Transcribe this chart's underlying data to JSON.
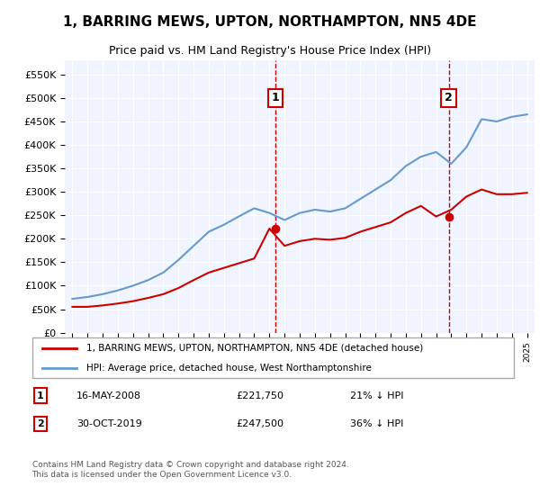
{
  "title": "1, BARRING MEWS, UPTON, NORTHAMPTON, NN5 4DE",
  "subtitle": "Price paid vs. HM Land Registry's House Price Index (HPI)",
  "legend_label_red": "1, BARRING MEWS, UPTON, NORTHAMPTON, NN5 4DE (detached house)",
  "legend_label_blue": "HPI: Average price, detached house, West Northamptonshire",
  "transaction1_label": "1",
  "transaction1_date": "16-MAY-2008",
  "transaction1_price": "£221,750",
  "transaction1_hpi": "21% ↓ HPI",
  "transaction2_label": "2",
  "transaction2_date": "30-OCT-2019",
  "transaction2_price": "£247,500",
  "transaction2_hpi": "36% ↓ HPI",
  "footer": "Contains HM Land Registry data © Crown copyright and database right 2024.\nThis data is licensed under the Open Government Licence v3.0.",
  "ylim": [
    0,
    580000
  ],
  "yticks": [
    0,
    50000,
    100000,
    150000,
    200000,
    250000,
    300000,
    350000,
    400000,
    450000,
    500000,
    550000
  ],
  "background_color": "#f0f4ff",
  "plot_bg": "#f0f4ff",
  "red_color": "#cc0000",
  "blue_color": "#6699cc",
  "vline_color": "#cc0000",
  "transaction1_x": 2008.38,
  "transaction2_x": 2019.83,
  "hpi_years": [
    1995,
    1996,
    1997,
    1998,
    1999,
    2000,
    2001,
    2002,
    2003,
    2004,
    2005,
    2006,
    2007,
    2008,
    2009,
    2010,
    2011,
    2012,
    2013,
    2014,
    2015,
    2016,
    2017,
    2018,
    2019,
    2020,
    2021,
    2022,
    2023,
    2024,
    2025
  ],
  "hpi_values": [
    72000,
    76000,
    82000,
    90000,
    100000,
    112000,
    128000,
    155000,
    185000,
    215000,
    230000,
    248000,
    265000,
    255000,
    240000,
    255000,
    262000,
    258000,
    265000,
    285000,
    305000,
    325000,
    355000,
    375000,
    385000,
    360000,
    395000,
    455000,
    450000,
    460000,
    465000
  ],
  "red_years": [
    1995,
    1996,
    1997,
    1998,
    1999,
    2000,
    2001,
    2002,
    2003,
    2004,
    2005,
    2006,
    2007,
    2008,
    2009,
    2010,
    2011,
    2012,
    2013,
    2014,
    2015,
    2016,
    2017,
    2018,
    2019,
    2020,
    2021,
    2022,
    2023,
    2024,
    2025
  ],
  "red_values": [
    55000,
    55000,
    58000,
    62000,
    67000,
    74000,
    82000,
    95000,
    112000,
    128000,
    138000,
    148000,
    158000,
    221750,
    185000,
    195000,
    200000,
    198000,
    202000,
    215000,
    225000,
    235000,
    255000,
    270000,
    247500,
    262000,
    290000,
    305000,
    295000,
    295000,
    298000
  ]
}
